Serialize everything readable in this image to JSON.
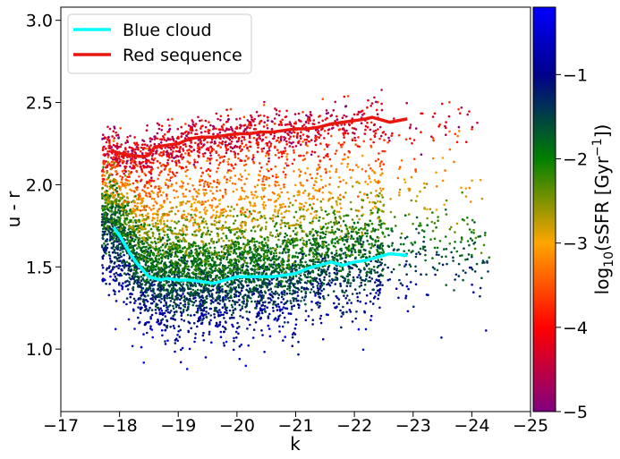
{
  "chart_data": {
    "type": "scatter",
    "xlabel": "k",
    "ylabel": "u - r",
    "xlim": [
      -17,
      -25
    ],
    "ylim": [
      0.62,
      3.08
    ],
    "x_ticks": [
      -17,
      -18,
      -19,
      -20,
      -21,
      -22,
      -23,
      -24,
      -25
    ],
    "x_tick_labels": [
      "−17",
      "−18",
      "−19",
      "−20",
      "−21",
      "−22",
      "−23",
      "−24",
      "−25"
    ],
    "y_ticks": [
      1.0,
      1.5,
      2.0,
      2.5,
      3.0
    ],
    "y_tick_labels": [
      "1.0",
      "1.5",
      "2.0",
      "2.5",
      "3.0"
    ],
    "grid": false,
    "legend_placement": "upper-left",
    "series": [
      {
        "name": "Blue cloud",
        "kind": "line",
        "color": "#00ffff",
        "x": [
          -17.9,
          -18.0,
          -18.1,
          -18.2,
          -18.3,
          -18.4,
          -18.5,
          -18.6,
          -18.7,
          -18.8,
          -19.0,
          -19.2,
          -19.4,
          -19.6,
          -19.8,
          -20.0,
          -20.2,
          -20.4,
          -20.6,
          -20.8,
          -21.0,
          -21.2,
          -21.4,
          -21.6,
          -21.8,
          -22.0,
          -22.2,
          -22.4,
          -22.6,
          -22.9
        ],
        "y": [
          1.74,
          1.69,
          1.63,
          1.57,
          1.52,
          1.48,
          1.44,
          1.43,
          1.42,
          1.43,
          1.42,
          1.42,
          1.41,
          1.4,
          1.42,
          1.44,
          1.44,
          1.44,
          1.44,
          1.45,
          1.46,
          1.49,
          1.51,
          1.53,
          1.51,
          1.53,
          1.54,
          1.56,
          1.58,
          1.57
        ]
      },
      {
        "name": "Red sequence",
        "kind": "line",
        "color": "#e8160c",
        "x": [
          -17.85,
          -18.0,
          -18.2,
          -18.4,
          -18.5,
          -18.6,
          -18.8,
          -19.0,
          -19.2,
          -19.4,
          -19.6,
          -19.8,
          -20.0,
          -20.2,
          -20.4,
          -20.6,
          -20.8,
          -21.0,
          -21.2,
          -21.4,
          -21.6,
          -21.8,
          -22.0,
          -22.2,
          -22.3,
          -22.4,
          -22.6,
          -22.9
        ],
        "y": [
          2.21,
          2.19,
          2.18,
          2.17,
          2.18,
          2.23,
          2.24,
          2.25,
          2.28,
          2.29,
          2.29,
          2.3,
          2.31,
          2.31,
          2.32,
          2.32,
          2.33,
          2.34,
          2.34,
          2.35,
          2.37,
          2.38,
          2.39,
          2.4,
          2.41,
          2.4,
          2.38,
          2.4
        ]
      }
    ],
    "scatter_points": {
      "description_of_density": [
        {
          "k_range": [
            -17.7,
            -18.5
          ],
          "u_r_range": [
            0.95,
            2.4
          ],
          "count": 1500
        },
        {
          "k_range": [
            -18.5,
            -19.5
          ],
          "u_r_range": [
            0.85,
            2.35
          ],
          "count": 1700
        },
        {
          "k_range": [
            -19.5,
            -20.5
          ],
          "u_r_range": [
            0.85,
            2.45
          ],
          "count": 1400
        },
        {
          "k_range": [
            -20.5,
            -21.5
          ],
          "u_r_range": [
            0.85,
            2.5
          ],
          "count": 1100
        },
        {
          "k_range": [
            -21.5,
            -22.5
          ],
          "u_r_range": [
            0.95,
            2.55
          ],
          "count": 800
        },
        {
          "k_range": [
            -22.5,
            -24.3
          ],
          "u_r_range": [
            1.1,
            2.55
          ],
          "count": 300
        }
      ]
    },
    "colorbar": {
      "label": "log10(sSFR [Gyr−1])",
      "label_parts": {
        "prefix": "log",
        "sub": "10",
        "mid": "(sSFR [Gyr",
        "sup": "−1",
        "suffix": "])"
      },
      "range": [
        -5,
        -0.2
      ],
      "ticks": [
        -1,
        -2,
        -3,
        -4,
        -5
      ],
      "tick_labels": [
        "−1",
        "−2",
        "−3",
        "−4",
        "−5"
      ],
      "colormap_stops": [
        {
          "value": -5.0,
          "color": "#800080"
        },
        {
          "value": -4.0,
          "color": "#ff0000"
        },
        {
          "value": -3.0,
          "color": "#ffa500"
        },
        {
          "value": -2.0,
          "color": "#008000"
        },
        {
          "value": -1.0,
          "color": "#00008b"
        },
        {
          "value": -0.2,
          "color": "#0000ff"
        }
      ]
    }
  }
}
